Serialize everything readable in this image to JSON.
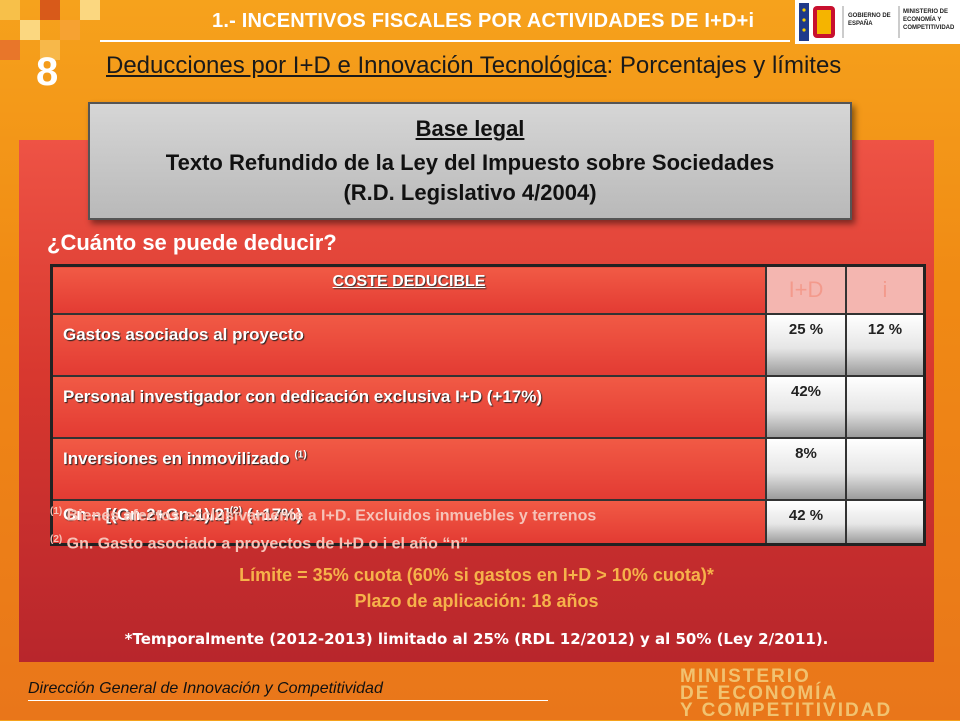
{
  "header": {
    "title": "1.- INCENTIVOS FISCALES POR ACTIVIDADES DE I+D+i",
    "logo_gobierno": "GOBIERNO DE ESPAÑA",
    "logo_ministerio": "MINISTERIO DE ECONOMÍA Y COMPETITIVIDAD"
  },
  "slide": {
    "number": "8",
    "subtitle_underlined": "Deducciones por I+D e Innovación Tecnológica",
    "subtitle_rest": ": Porcentajes y límites"
  },
  "base_legal": {
    "title": "Base legal",
    "line1": "Texto Refundido de la Ley del Impuesto sobre Sociedades",
    "line2": "(R.D. Legislativo 4/2004)"
  },
  "question": "¿Cuánto se puede deducir?",
  "table": {
    "headers": {
      "coste": "COSTE  DEDUCIBLE",
      "id": "I+D",
      "i": "i"
    },
    "rows": [
      {
        "label": "Gastos asociados al proyecto",
        "sup": "",
        "label_after": "",
        "id": "25 %",
        "i": "12 %"
      },
      {
        "label": "Personal investigador con dedicación exclusiva I+D  (+17%)",
        "sup": "",
        "label_after": "",
        "id": "42%",
        "i": ""
      },
      {
        "label": "Inversiones en inmovilizado ",
        "sup": "(1)",
        "label_after": "",
        "id": "8%",
        "i": ""
      },
      {
        "label": "Gn – [(Gn-2+Gn-1)/2]",
        "sup": "(2)",
        "label_after": " (+17%)",
        "id": "42 %",
        "i": ""
      }
    ]
  },
  "notes": [
    {
      "mark": "(1)",
      "text": " Bienes afectos exclusivamente a I+D. Excluidos inmuebles y terrenos"
    },
    {
      "mark": "(2)",
      "text": " Gn. Gasto asociado a proyectos de I+D o i el año “n”"
    }
  ],
  "limit": {
    "line1": "Límite = 35% cuota (60% si gastos en I+D > 10% cuota)*",
    "line2": "Plazo de aplicación: 18 años"
  },
  "temporal": "*Temporalmente (2012-2013) limitado al 25% (RDL 12/2012) y al 50% (Ley 2/2011).",
  "footer": {
    "text": "Dirección General de Innovación y Competitividad",
    "ministry": [
      "MINISTERIO",
      "DE ECONOMÍA",
      "Y COMPETITIVIDAD"
    ]
  },
  "colors": {
    "background": "#f08a14",
    "panel": "#d8382f",
    "accent_text": "#f6b24a"
  }
}
